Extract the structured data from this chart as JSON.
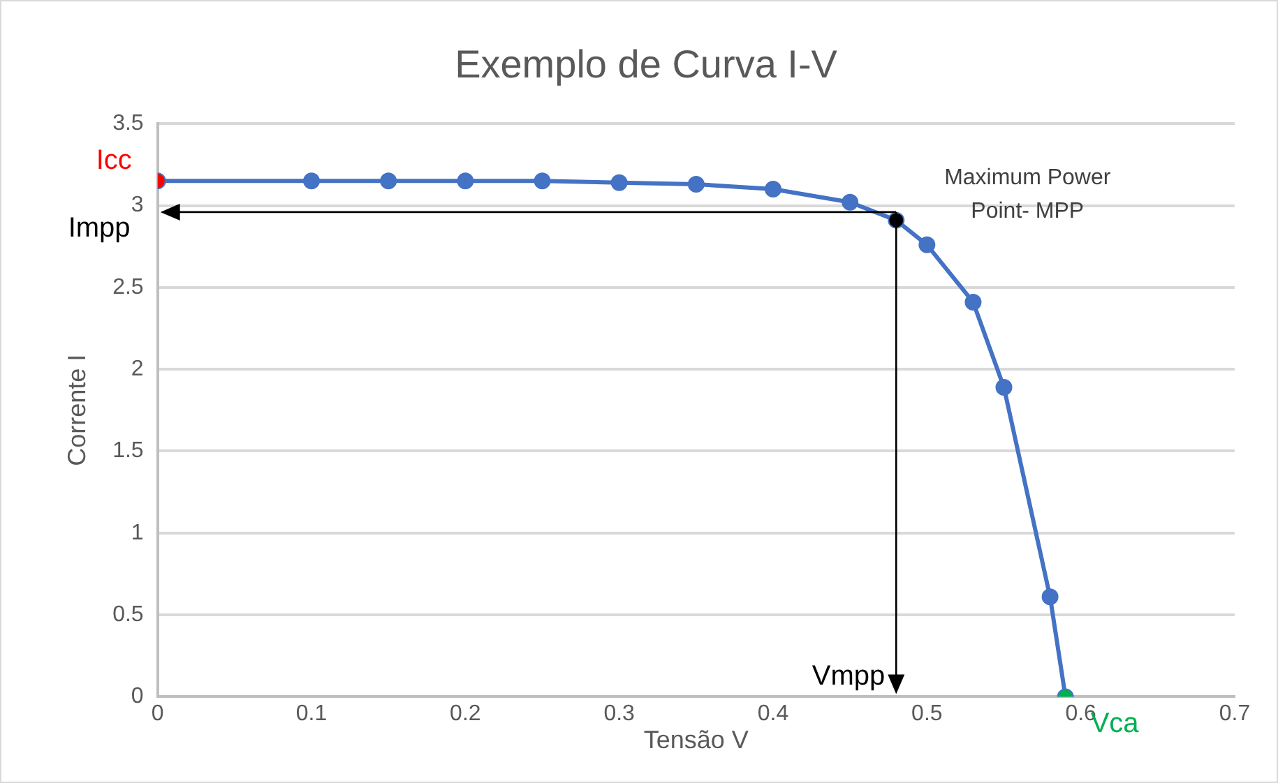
{
  "chart_data": {
    "type": "line",
    "title": "Exemplo de Curva I-V",
    "xlabel": "Tensão V",
    "ylabel": "Corrente I",
    "x": [
      0,
      0.1,
      0.15,
      0.2,
      0.25,
      0.3,
      0.35,
      0.4,
      0.45,
      0.48,
      0.5,
      0.53,
      0.55,
      0.58,
      0.59
    ],
    "series": [
      {
        "color": "#4472c4",
        "colors": [
          "#ff0000",
          "#4472c4",
          "#4472c4",
          "#4472c4",
          "#4472c4",
          "#4472c4",
          "#4472c4",
          "#4472c4",
          "#4472c4",
          "#000000",
          "#4472c4",
          "#4472c4",
          "#4472c4",
          "#4472c4",
          "#00b050"
        ],
        "values": [
          3.15,
          3.15,
          3.15,
          3.15,
          3.15,
          3.14,
          3.13,
          3.1,
          3.02,
          2.91,
          2.76,
          2.41,
          1.89,
          0.61,
          0
        ]
      }
    ],
    "xlim": [
      0,
      0.7
    ],
    "xticks": [
      0,
      0.1,
      0.2,
      0.3,
      0.4,
      0.5,
      0.6,
      0.7
    ],
    "ylim": [
      0,
      3.5
    ],
    "yticks": [
      0,
      0.5,
      1,
      1.5,
      2,
      2.5,
      3,
      3.5
    ],
    "grid": "y",
    "legend": false,
    "marker": "circle",
    "line_style": "solid",
    "ref_lines": [
      {
        "axis": "y",
        "value": 2.96,
        "label": "Impp",
        "color": "#000000"
      },
      {
        "axis": "x",
        "value": 0.48,
        "label": "Vmpp",
        "color": "#000000"
      }
    ],
    "annotations": [
      {
        "text": "Icc",
        "x": 0,
        "y": 3.15
      },
      {
        "text": "Vca",
        "x": 0.59,
        "y": 0
      },
      {
        "text": "Maximum Power Point- MPP",
        "x": 0.48,
        "y": 2.91
      }
    ]
  }
}
